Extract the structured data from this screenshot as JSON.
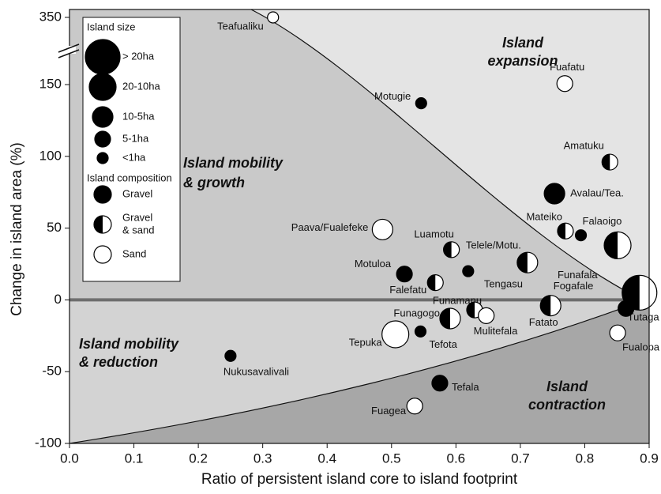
{
  "chart_data": {
    "type": "scatter",
    "x_label": "Ratio of persistent island core to island footprint",
    "y_label": "Change in island area (%)",
    "xlim": [
      0,
      0.9
    ],
    "xticks": [
      {
        "value": 0,
        "label": "0.0"
      },
      0.1,
      0.2,
      0.3,
      0.4,
      0.5,
      0.6,
      0.7,
      0.8,
      0.9
    ],
    "ylim": [
      -100,
      350
    ],
    "yticks": [
      -100,
      -50,
      0,
      50,
      100,
      150,
      350
    ],
    "y_axis_break": true,
    "regions": [
      {
        "lines": [
          "Island",
          "expansion"
        ]
      },
      {
        "lines": [
          "Island mobility",
          "& growth"
        ]
      },
      {
        "lines": [
          "Island mobility",
          "& reduction"
        ]
      },
      {
        "lines": [
          "Island",
          "contraction"
        ]
      }
    ],
    "legend": {
      "size_title": "Island size",
      "sizes": [
        "> 20ha",
        "20-10ha",
        "10-5ha",
        "5-1ha",
        "<1ha"
      ],
      "composition_title": "Island composition",
      "compositions": [
        [
          "Gravel"
        ],
        [
          "Gravel",
          "& sand"
        ],
        [
          "Sand"
        ]
      ]
    },
    "points": [
      {
        "name": "Teafualiku",
        "x": 0.316,
        "y": 350,
        "size": "<1ha",
        "composition": "Sand"
      },
      {
        "name": "Fuafatu",
        "x": 0.769,
        "y": 153,
        "size": "5-1ha",
        "composition": "Sand"
      },
      {
        "name": "Motugie",
        "x": 0.546,
        "y": 137,
        "size": "<1ha",
        "composition": "Gravel"
      },
      {
        "name": "Amatuku",
        "x": 0.839,
        "y": 96,
        "size": "5-1ha",
        "composition": "Gravel & sand"
      },
      {
        "name": "Avalau/Tea.",
        "x": 0.753,
        "y": 74,
        "size": "10-5ha",
        "composition": "Gravel"
      },
      {
        "name": "Mateiko",
        "x": 0.77,
        "y": 48,
        "size": "5-1ha",
        "composition": "Gravel & sand"
      },
      {
        "name": "Falaoigo",
        "x": 0.794,
        "y": 45,
        "size": "<1ha",
        "composition": "Gravel"
      },
      {
        "name": "Funafala",
        "x": 0.851,
        "y": 38,
        "size": "20-10ha",
        "composition": "Gravel & sand"
      },
      {
        "name": "Paava/Fualefeke",
        "x": 0.486,
        "y": 49,
        "size": "10-5ha",
        "composition": "Sand"
      },
      {
        "name": "Luamotu",
        "x": 0.593,
        "y": 35,
        "size": "5-1ha",
        "composition": "Gravel & sand"
      },
      {
        "name": "Telele/Motu.",
        "x": 0.711,
        "y": 26,
        "size": "10-5ha",
        "composition": "Gravel & sand"
      },
      {
        "name": "Tengasu",
        "x": 0.619,
        "y": 20,
        "size": "<1ha",
        "composition": "Gravel"
      },
      {
        "name": "Motuloa",
        "x": 0.52,
        "y": 18,
        "size": "5-1ha",
        "composition": "Gravel"
      },
      {
        "name": "Falefatu",
        "x": 0.568,
        "y": 12,
        "size": "5-1ha",
        "composition": "Gravel & sand"
      },
      {
        "name": "Fogafale",
        "x": 0.885,
        "y": 5,
        "size": "> 20ha",
        "composition": "Gravel & sand"
      },
      {
        "name": "Funamanu",
        "x": 0.629,
        "y": -7,
        "size": "5-1ha",
        "composition": "Gravel & sand"
      },
      {
        "name": "Mulitefala",
        "x": 0.647,
        "y": -11,
        "size": "5-1ha",
        "composition": "Sand"
      },
      {
        "name": "Funagogo",
        "x": 0.591,
        "y": -13,
        "size": "10-5ha",
        "composition": "Gravel & sand"
      },
      {
        "name": "Tefota",
        "x": 0.545,
        "y": -22,
        "size": "<1ha",
        "composition": "Gravel"
      },
      {
        "name": "Tepuka",
        "x": 0.506,
        "y": -24,
        "size": "20-10ha",
        "composition": "Sand"
      },
      {
        "name": "Fatato",
        "x": 0.747,
        "y": -4,
        "size": "10-5ha",
        "composition": "Gravel & sand"
      },
      {
        "name": "Tutaga",
        "x": 0.864,
        "y": -6,
        "size": "5-1ha",
        "composition": "Gravel"
      },
      {
        "name": "Fualopa",
        "x": 0.851,
        "y": -23,
        "size": "5-1ha",
        "composition": "Sand"
      },
      {
        "name": "Nukusavalivali",
        "x": 0.25,
        "y": -39,
        "size": "<1ha",
        "composition": "Gravel"
      },
      {
        "name": "Tefala",
        "x": 0.575,
        "y": -58,
        "size": "5-1ha",
        "composition": "Gravel"
      },
      {
        "name": "Fuagea",
        "x": 0.536,
        "y": -74,
        "size": "5-1ha",
        "composition": "Sand"
      }
    ]
  }
}
